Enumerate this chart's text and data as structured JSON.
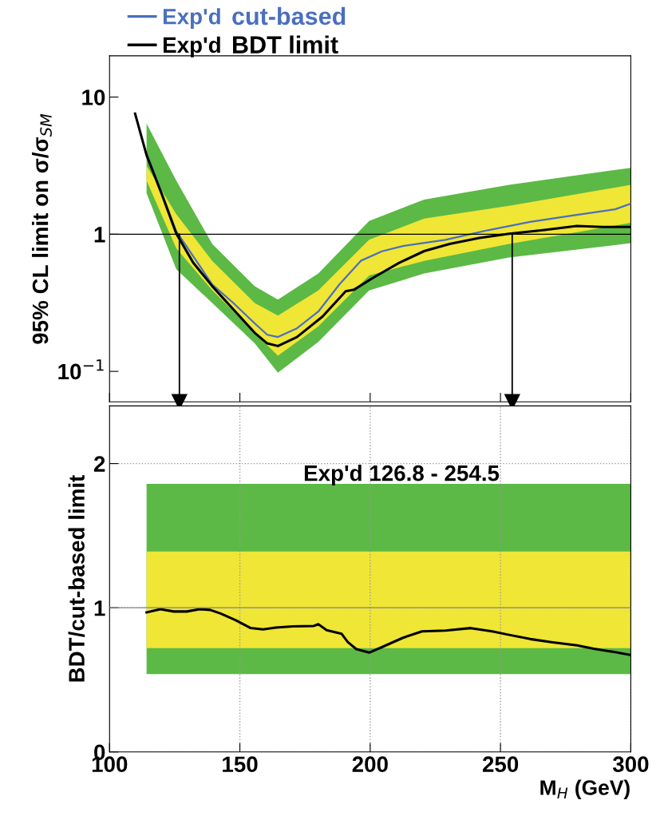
{
  "chart_data": [
    {
      "type": "line",
      "ylabel": "95% CL limit on σ/σ$_{SM}$",
      "log": "y",
      "xlim": [
        100,
        300
      ],
      "ylim": [
        0.06,
        20
      ],
      "yticks": [
        {
          "value": 0.1,
          "label": "10$^{−1}$"
        },
        1,
        10
      ],
      "tick_labels": "y",
      "grid": false,
      "legend": "top left",
      "annotations": [
        "cut-based",
        "BDT limit"
      ],
      "ref_lines": [
        {
          "axis": "y",
          "value": 1,
          "color": "#000000"
        },
        {
          "axis": "x",
          "value": 126.8,
          "color": "#000000"
        },
        {
          "axis": "x",
          "value": 254.5,
          "color": "#000000"
        }
      ],
      "series": [
        {
          "type": "area",
          "color": "#5cb946",
          "x": [
            114.2,
            125.6,
            139.4,
            155.7,
            164.6,
            180.1,
            199.6,
            220.7,
            253.3,
            300
          ],
          "values": [
            null,
            null,
            null,
            null,
            null,
            null,
            null,
            null,
            null,
            null
          ],
          "lower": [
            1.99,
            0.555,
            0.315,
            0.16,
            0.098,
            0.164,
            0.389,
            0.517,
            0.677,
            0.86
          ],
          "upper": [
            6.4,
            2.46,
            0.85,
            0.418,
            0.333,
            0.517,
            1.25,
            1.79,
            2.29,
            3.05
          ]
        },
        {
          "type": "area",
          "color": "#f0e635",
          "x": [
            114.2,
            125.6,
            139.4,
            155.7,
            164.6,
            180.1,
            199.6,
            220.7,
            253.3,
            300
          ],
          "values": [
            null,
            null,
            null,
            null,
            null,
            null,
            null,
            null,
            null,
            null
          ],
          "lower": [
            2.46,
            0.79,
            0.39,
            0.191,
            0.13,
            0.213,
            0.5,
            0.64,
            0.85,
            1.21
          ],
          "upper": [
            3.15,
            1.4,
            0.64,
            0.315,
            0.255,
            0.389,
            0.912,
            1.3,
            1.61,
            2.29
          ]
        },
        {
          "name": "Exp'd",
          "color": "#4a6fc0",
          "x": [
            114.2,
            125.6,
            139.4,
            147.5,
            155.7,
            160.5,
            164.6,
            171.9,
            180.1,
            188.3,
            196.4,
            204.5,
            212.6,
            228.9,
            245.2,
            261.4,
            277.7,
            294,
            300
          ],
          "values": [
            3.9,
            1.05,
            0.43,
            0.315,
            0.224,
            0.185,
            0.178,
            0.206,
            0.273,
            0.433,
            0.64,
            0.75,
            0.82,
            0.91,
            1.07,
            1.23,
            1.37,
            1.52,
            1.67
          ]
        },
        {
          "name": "Exp'd",
          "color": "#000000",
          "x": [
            109.8,
            114.2,
            119.9,
            125.6,
            132.1,
            139.4,
            147.5,
            155.7,
            160.5,
            164.6,
            171.9,
            181.7,
            190.6,
            193.9,
            201.2,
            211,
            220.7,
            230.5,
            241.9,
            253.3,
            266.3,
            279.3,
            289.1,
            300
          ],
          "values": [
            7.56,
            3.77,
            1.99,
            1.01,
            0.62,
            0.418,
            0.283,
            0.191,
            0.16,
            0.153,
            0.178,
            0.251,
            0.384,
            0.395,
            0.482,
            0.617,
            0.753,
            0.85,
            0.938,
            1.007,
            1.07,
            1.15,
            1.13,
            1.13
          ]
        }
      ]
    },
    {
      "type": "line",
      "ylabel": "BDT/cut-based limit",
      "xlabel": "M$_{H}$ (GeV)",
      "xlim": [
        100,
        300
      ],
      "ylim": [
        0,
        2.4
      ],
      "xticks": [
        100,
        150,
        200,
        250,
        300
      ],
      "yticks": [
        0,
        1,
        2
      ],
      "grid": true,
      "annotations": [
        "Exp'd 126.8 - 254.5"
      ],
      "ref_lines": [
        {
          "axis": "y",
          "value": 1,
          "color": "#888888"
        }
      ],
      "series": [
        {
          "type": "area",
          "color": "#5cb946",
          "x": [
            114.2,
            300
          ],
          "values": [
            null,
            null
          ],
          "lower": [
            0.54,
            0.54
          ],
          "upper": [
            1.86,
            1.86
          ]
        },
        {
          "type": "area",
          "color": "#f0e635",
          "x": [
            114.2,
            300
          ],
          "values": [
            null,
            null
          ],
          "lower": [
            0.72,
            0.72
          ],
          "upper": [
            1.39,
            1.39
          ]
        },
        {
          "color": "#000000",
          "x": [
            114.2,
            119.5,
            124.7,
            129.6,
            134.5,
            138.6,
            142.6,
            148.3,
            154,
            158.9,
            163.8,
            170.3,
            178.4,
            180.1,
            183.3,
            189,
            191.4,
            194.7,
            199.6,
            204.5,
            212.6,
            219.9,
            228.9,
            238.6,
            246.8,
            253.3,
            261.4,
            269.5,
            279.3,
            285.8,
            294,
            300
          ],
          "values": [
            0.968,
            0.99,
            0.974,
            0.974,
            0.99,
            0.985,
            0.96,
            0.915,
            0.86,
            0.85,
            0.862,
            0.871,
            0.874,
            0.886,
            0.845,
            0.82,
            0.762,
            0.713,
            0.689,
            0.727,
            0.792,
            0.836,
            0.842,
            0.859,
            0.836,
            0.812,
            0.783,
            0.762,
            0.739,
            0.716,
            0.692,
            0.672
          ]
        }
      ]
    }
  ]
}
